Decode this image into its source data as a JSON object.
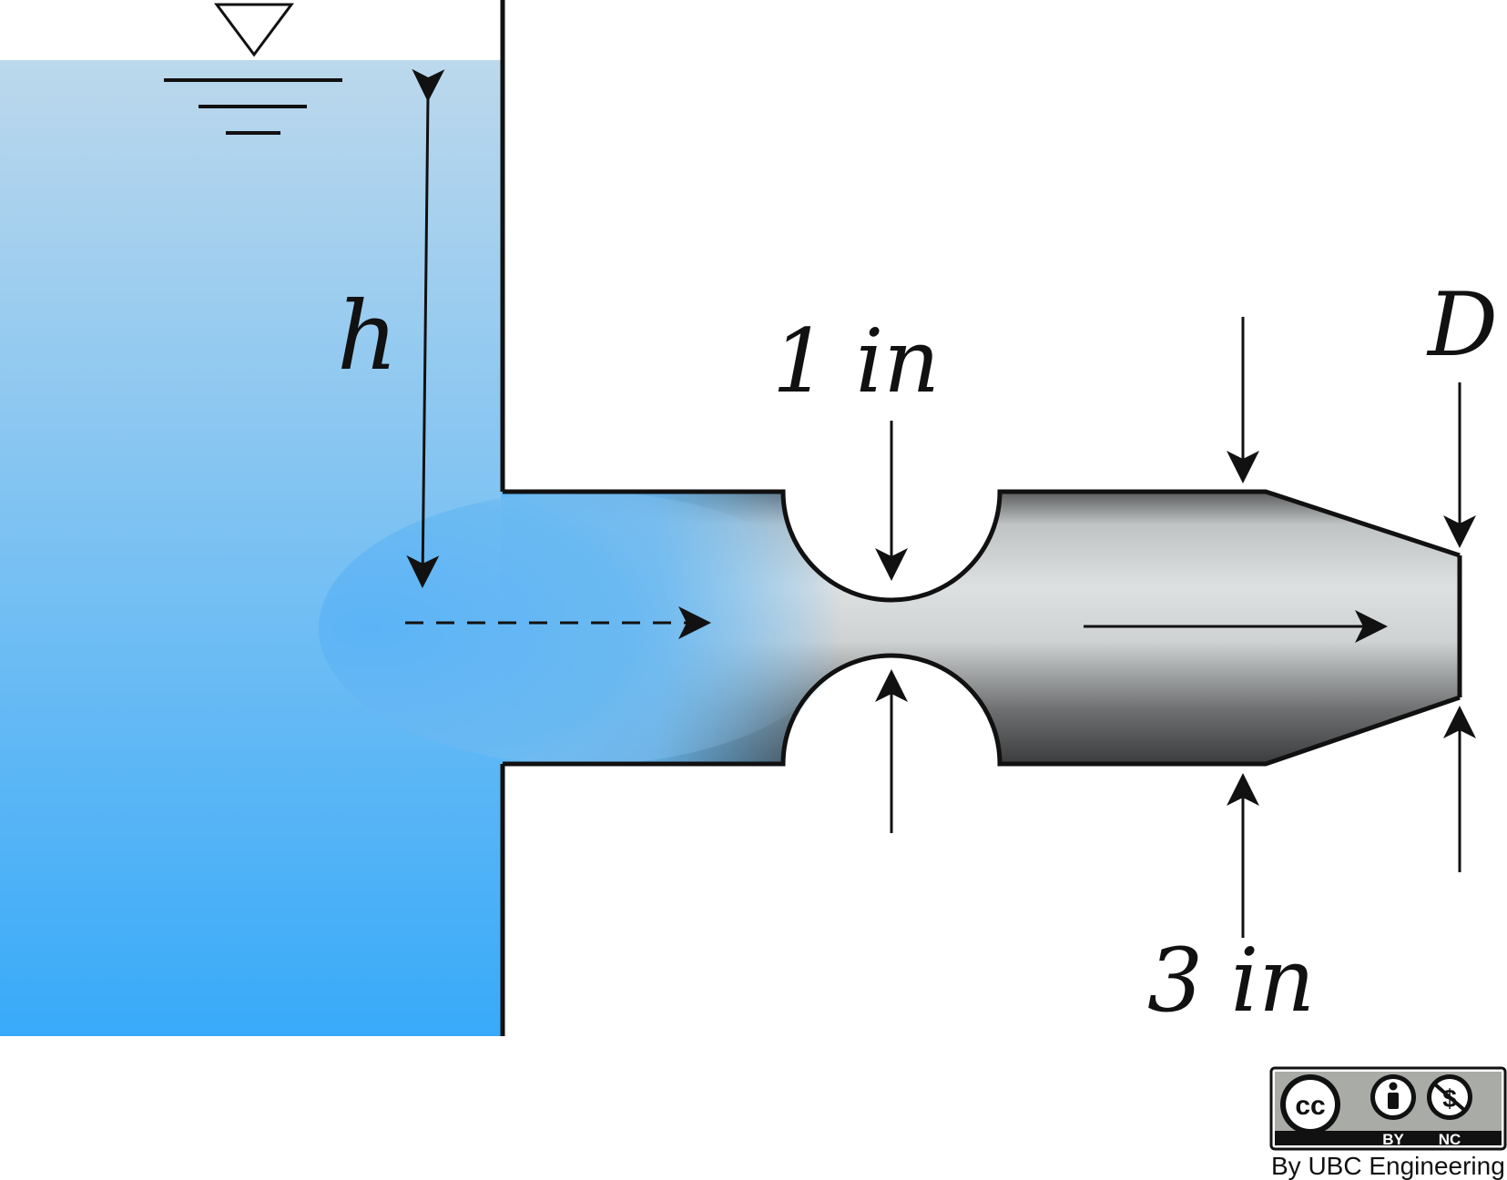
{
  "labels": {
    "head": "h",
    "throat_diameter": "1 in",
    "pipe_diameter": "3 in",
    "exit_diameter": "D"
  },
  "license": {
    "cc_mark": "cc",
    "by": "BY",
    "nc": "NC",
    "credit": "By UBC Engineering"
  },
  "colors": {
    "water_top": "#bcd8ec",
    "water_bottom": "#38aaf9",
    "pipe_light": "#dde0e1",
    "pipe_dark": "#444546",
    "outline": "#111111",
    "badge_gray": "#a9aba7"
  }
}
